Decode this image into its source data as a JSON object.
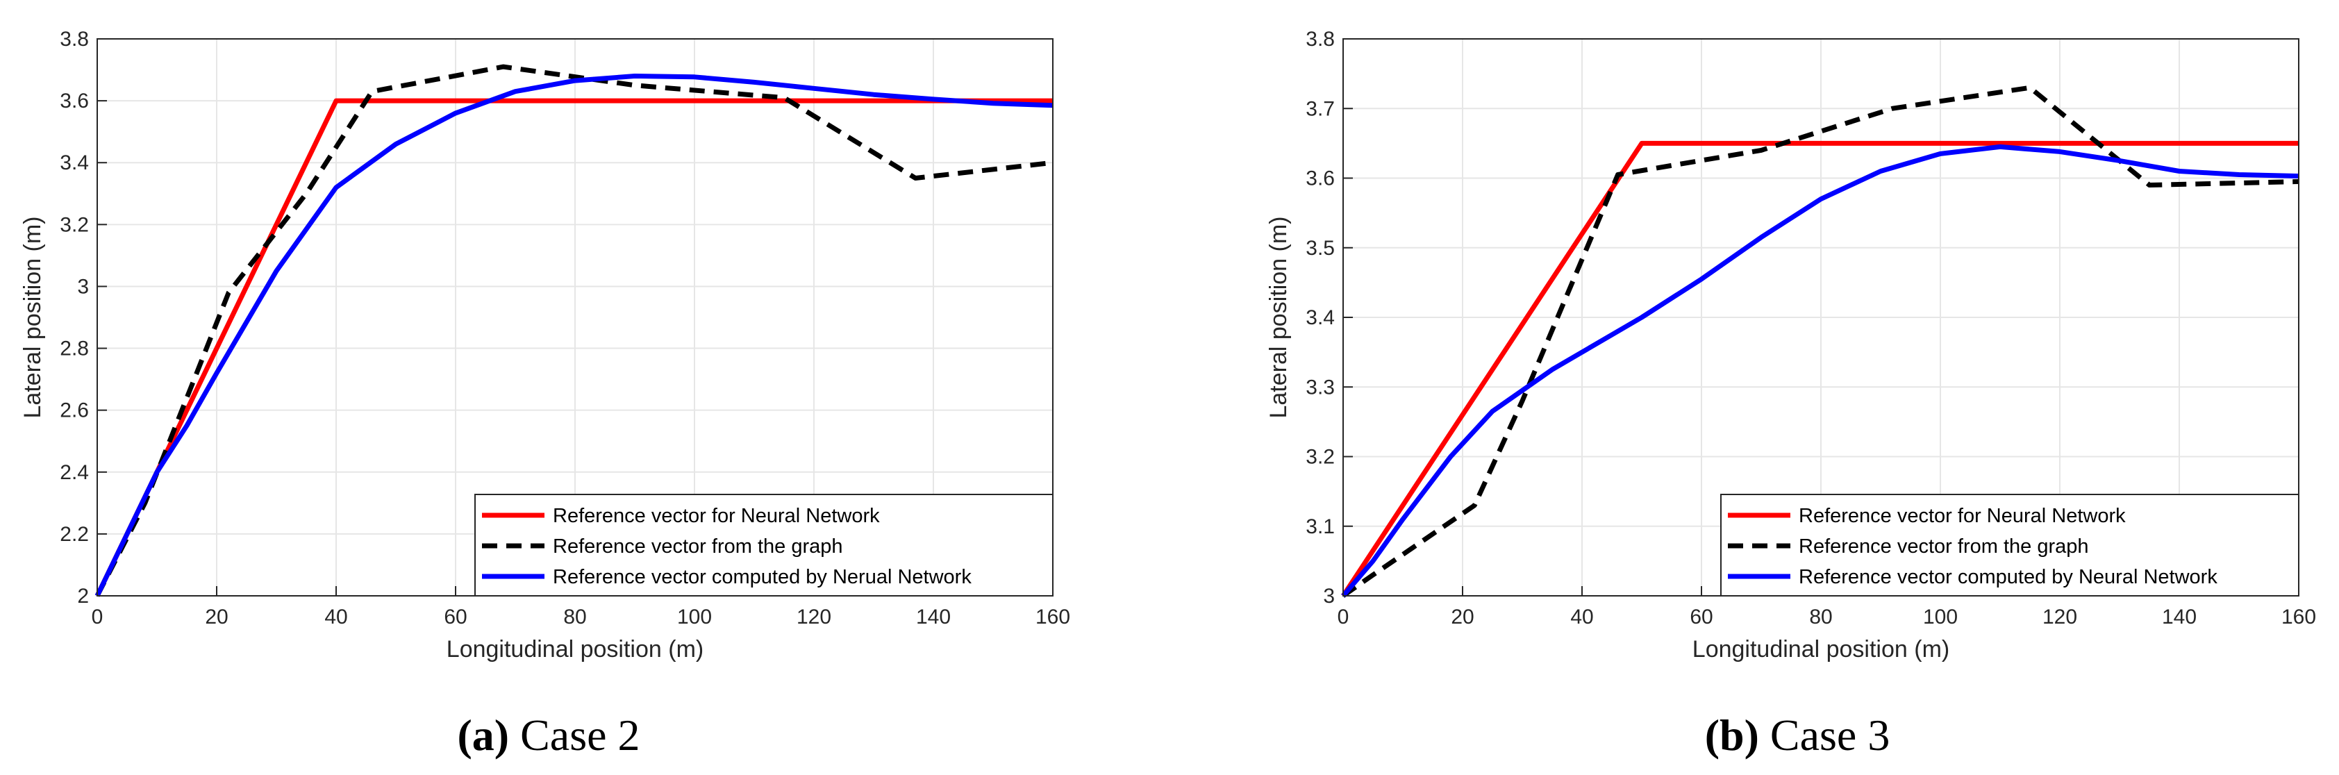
{
  "chart_data": [
    {
      "type": "line",
      "caption_letter": "(a)",
      "caption_text": "Case 2",
      "xlabel": "Longitudinal position (m)",
      "ylabel": "Lateral position (m)",
      "xlim": [
        0,
        160
      ],
      "ylim": [
        2,
        3.8
      ],
      "xticks": [
        "0",
        "20",
        "40",
        "60",
        "80",
        "100",
        "120",
        "140",
        "160"
      ],
      "yticks": [
        "2",
        "2.2",
        "2.4",
        "2.6",
        "2.8",
        "3",
        "3.2",
        "3.4",
        "3.6",
        "3.8"
      ],
      "grid": true,
      "legend_position": "bottom-right",
      "series": [
        {
          "name": "Reference vector for Neural Network",
          "color": "#ff0000",
          "style": "solid",
          "points": [
            [
              0,
              2.0
            ],
            [
              40,
              3.6
            ],
            [
              160,
              3.6
            ]
          ]
        },
        {
          "name": "Reference vector from the graph",
          "color": "#000000",
          "style": "dashed",
          "points": [
            [
              0,
              2.0
            ],
            [
              8,
              2.3
            ],
            [
              22,
              2.98
            ],
            [
              35,
              3.3
            ],
            [
              46,
              3.63
            ],
            [
              68,
              3.71
            ],
            [
              90,
              3.65
            ],
            [
              115,
              3.61
            ],
            [
              137,
              3.35
            ],
            [
              160,
              3.4
            ]
          ]
        },
        {
          "name": "Reference vector computed by Nerual Network",
          "color": "#0000ff",
          "style": "solid",
          "points": [
            [
              0,
              2.0
            ],
            [
              5,
              2.2
            ],
            [
              10,
              2.4
            ],
            [
              15,
              2.55
            ],
            [
              20,
              2.72
            ],
            [
              30,
              3.05
            ],
            [
              40,
              3.32
            ],
            [
              50,
              3.46
            ],
            [
              60,
              3.56
            ],
            [
              70,
              3.63
            ],
            [
              80,
              3.665
            ],
            [
              90,
              3.68
            ],
            [
              100,
              3.677
            ],
            [
              110,
              3.66
            ],
            [
              120,
              3.64
            ],
            [
              130,
              3.62
            ],
            [
              140,
              3.605
            ],
            [
              150,
              3.592
            ],
            [
              160,
              3.585
            ]
          ]
        }
      ]
    },
    {
      "type": "line",
      "caption_letter": "(b)",
      "caption_text": "Case 3",
      "xlabel": "Longitudinal position (m)",
      "ylabel": "Lateral position (m)",
      "xlim": [
        0,
        160
      ],
      "ylim": [
        3,
        3.8
      ],
      "xticks": [
        "0",
        "20",
        "40",
        "60",
        "80",
        "100",
        "120",
        "140",
        "160"
      ],
      "yticks": [
        "3",
        "3.1",
        "3.2",
        "3.3",
        "3.4",
        "3.5",
        "3.6",
        "3.7",
        "3.8"
      ],
      "grid": true,
      "legend_position": "bottom-right",
      "series": [
        {
          "name": "Reference vector for Neural Network",
          "color": "#ff0000",
          "style": "solid",
          "points": [
            [
              0,
              3.0
            ],
            [
              50,
              3.65
            ],
            [
              160,
              3.65
            ]
          ]
        },
        {
          "name": "Reference vector from the graph",
          "color": "#000000",
          "style": "dashed",
          "points": [
            [
              0,
              3.0
            ],
            [
              5,
              3.03
            ],
            [
              22,
              3.13
            ],
            [
              30,
              3.28
            ],
            [
              46,
              3.605
            ],
            [
              70,
              3.64
            ],
            [
              92,
              3.7
            ],
            [
              115,
              3.73
            ],
            [
              135,
              3.59
            ],
            [
              160,
              3.595
            ]
          ]
        },
        {
          "name": "Reference vector computed by Neural Network",
          "color": "#0000ff",
          "style": "solid",
          "points": [
            [
              0,
              3.0
            ],
            [
              5,
              3.05
            ],
            [
              10,
              3.11
            ],
            [
              18,
              3.2
            ],
            [
              25,
              3.265
            ],
            [
              35,
              3.325
            ],
            [
              50,
              3.4
            ],
            [
              60,
              3.455
            ],
            [
              70,
              3.515
            ],
            [
              80,
              3.57
            ],
            [
              90,
              3.61
            ],
            [
              100,
              3.635
            ],
            [
              110,
              3.645
            ],
            [
              120,
              3.638
            ],
            [
              130,
              3.625
            ],
            [
              140,
              3.61
            ],
            [
              150,
              3.605
            ],
            [
              160,
              3.603
            ]
          ]
        }
      ]
    }
  ]
}
